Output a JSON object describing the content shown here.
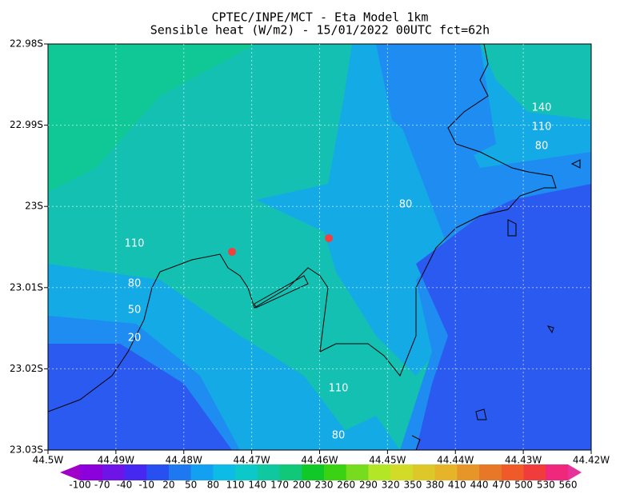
{
  "map": {
    "title": "CPTEC/INPE/MCT -  Eta Model 1km",
    "subtitle": "Sensible heat (W/m2) - 15/01/2022 00UTC fct=62h",
    "x_ticks": [
      "44.5W",
      "44.49W",
      "44.48W",
      "44.47W",
      "44.46W",
      "44.45W",
      "44.44W",
      "44.43W",
      "44.42W"
    ],
    "y_ticks": [
      "22.98S",
      "22.99S",
      "23S",
      "23.01S",
      "23.02S",
      "23.03S"
    ],
    "contour_labels": [
      140,
      110,
      80,
      80,
      110,
      80,
      50,
      20,
      110,
      80
    ],
    "colorbar": {
      "levels": [
        -100,
        -70,
        -40,
        -10,
        20,
        50,
        80,
        110,
        140,
        170,
        200,
        230,
        260,
        290,
        320,
        350,
        380,
        410,
        440,
        470,
        500,
        530,
        560
      ],
      "colors": [
        "#a000c8",
        "#8c00dc",
        "#6e14e6",
        "#4628f0",
        "#2850f0",
        "#1e78f0",
        "#14a0f0",
        "#0cbce6",
        "#0cc8c8",
        "#10c8a0",
        "#10c878",
        "#10c828",
        "#3cd214",
        "#78dc1e",
        "#b4e628",
        "#d2dc28",
        "#dcc828",
        "#e6b428",
        "#e69628",
        "#e67828",
        "#f05a28",
        "#f03c3c",
        "#f0287d",
        "#e6329a"
      ]
    }
  }
}
